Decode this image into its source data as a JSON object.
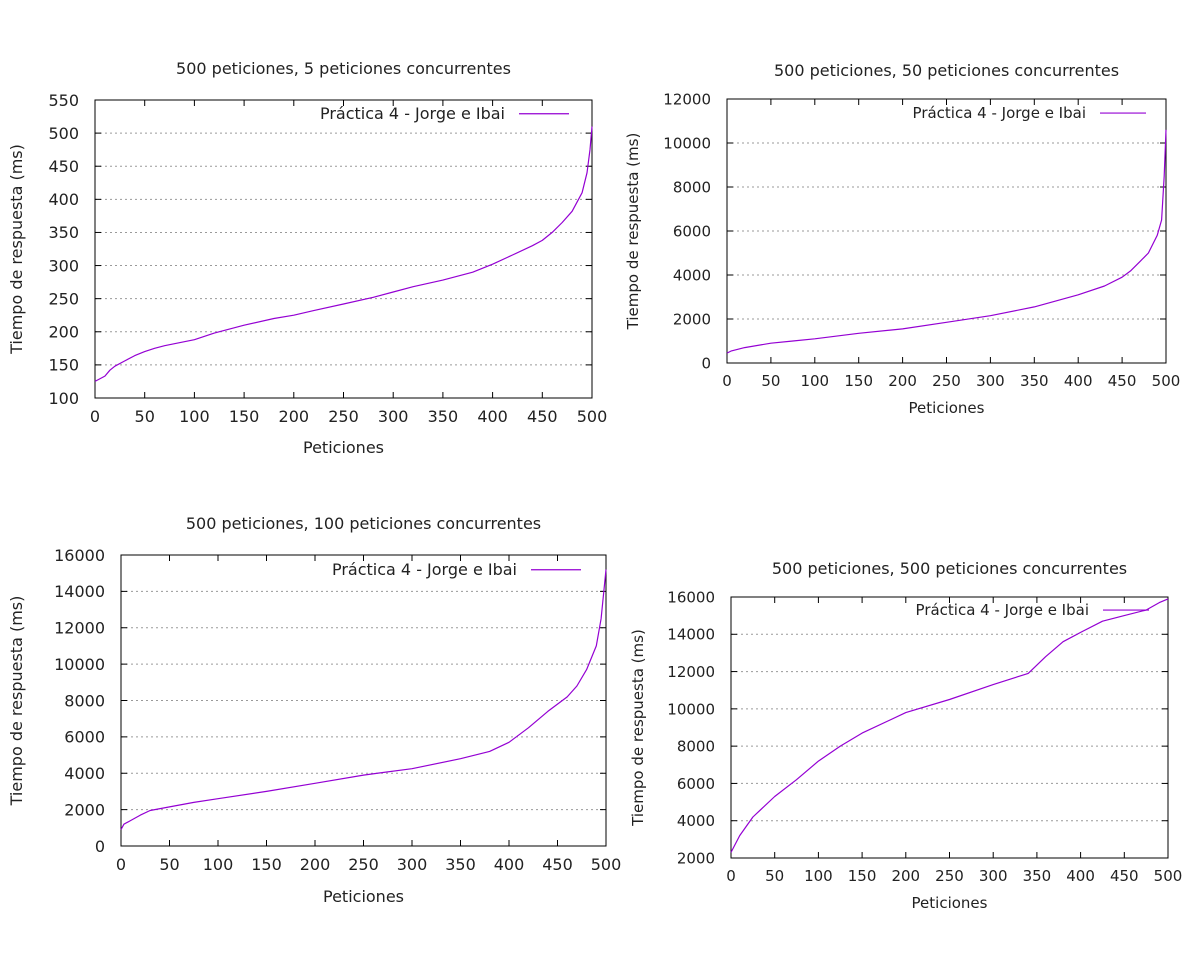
{
  "chart_data": [
    {
      "type": "line",
      "title": "500 peticiones, 5 peticiones concurrentes",
      "xlabel": "Peticiones",
      "ylabel": "Tiempo de respuesta (ms)",
      "xlim": [
        0,
        500
      ],
      "ylim": [
        100,
        550
      ],
      "xticks": [
        0,
        50,
        100,
        150,
        200,
        250,
        300,
        350,
        400,
        450,
        500
      ],
      "yticks": [
        100,
        150,
        200,
        250,
        300,
        350,
        400,
        450,
        500,
        550
      ],
      "grid": "horizontal dotted",
      "legend": "top-right",
      "color": "#9400d3",
      "series": [
        {
          "name": "Práctica 4 - Jorge e Ibai",
          "x": [
            0,
            10,
            15,
            20,
            30,
            40,
            50,
            60,
            70,
            80,
            100,
            120,
            150,
            180,
            200,
            220,
            250,
            280,
            300,
            320,
            350,
            380,
            400,
            420,
            440,
            450,
            460,
            470,
            480,
            490,
            495,
            498,
            500
          ],
          "y": [
            125,
            133,
            142,
            148,
            156,
            164,
            170,
            175,
            179,
            182,
            188,
            198,
            210,
            220,
            225,
            232,
            242,
            252,
            260,
            268,
            278,
            290,
            302,
            316,
            330,
            338,
            350,
            365,
            382,
            410,
            440,
            475,
            510
          ]
        }
      ]
    },
    {
      "type": "line",
      "title": "500 peticiones, 50 peticiones concurrentes",
      "xlabel": "Peticiones",
      "ylabel": "Tiempo de respuesta (ms)",
      "xlim": [
        0,
        500
      ],
      "ylim": [
        0,
        12000
      ],
      "xticks": [
        0,
        50,
        100,
        150,
        200,
        250,
        300,
        350,
        400,
        450,
        500
      ],
      "yticks": [
        0,
        2000,
        4000,
        6000,
        8000,
        10000,
        12000
      ],
      "grid": "horizontal dotted",
      "legend": "top-right",
      "color": "#9400d3",
      "series": [
        {
          "name": "Práctica 4 - Jorge e Ibai",
          "x": [
            0,
            5,
            20,
            50,
            75,
            100,
            150,
            200,
            250,
            300,
            350,
            400,
            430,
            450,
            460,
            470,
            480,
            490,
            495,
            498,
            500
          ],
          "y": [
            450,
            550,
            700,
            900,
            1000,
            1100,
            1350,
            1550,
            1850,
            2150,
            2550,
            3100,
            3500,
            3900,
            4200,
            4600,
            5000,
            5800,
            6500,
            8500,
            10600
          ]
        }
      ]
    },
    {
      "type": "line",
      "title": "500 peticiones, 100 peticiones concurrentes",
      "xlabel": "Peticiones",
      "ylabel": "Tiempo de respuesta (ms)",
      "xlim": [
        0,
        500
      ],
      "ylim": [
        0,
        16000
      ],
      "xticks": [
        0,
        50,
        100,
        150,
        200,
        250,
        300,
        350,
        400,
        450,
        500
      ],
      "yticks": [
        0,
        2000,
        4000,
        6000,
        8000,
        10000,
        12000,
        14000,
        16000
      ],
      "grid": "horizontal dotted",
      "legend": "top-right",
      "color": "#9400d3",
      "series": [
        {
          "name": "Práctica 4 - Jorge e Ibai",
          "x": [
            0,
            3,
            10,
            20,
            30,
            50,
            75,
            100,
            150,
            200,
            250,
            300,
            350,
            380,
            400,
            420,
            440,
            460,
            470,
            480,
            490,
            495,
            500
          ],
          "y": [
            900,
            1200,
            1400,
            1700,
            1950,
            2150,
            2400,
            2600,
            3000,
            3450,
            3900,
            4250,
            4800,
            5200,
            5700,
            6500,
            7400,
            8200,
            8800,
            9700,
            11000,
            12500,
            15200
          ]
        }
      ]
    },
    {
      "type": "line",
      "title": "500 peticiones, 500 peticiones concurrentes",
      "xlabel": "Peticiones",
      "ylabel": "Tiempo de respuesta (ms)",
      "xlim": [
        0,
        500
      ],
      "ylim": [
        2000,
        16000
      ],
      "xticks": [
        0,
        50,
        100,
        150,
        200,
        250,
        300,
        350,
        400,
        450,
        500
      ],
      "yticks": [
        2000,
        4000,
        6000,
        8000,
        10000,
        12000,
        14000,
        16000
      ],
      "grid": "horizontal dotted",
      "legend": "top-right",
      "color": "#9400d3",
      "series": [
        {
          "name": "Práctica 4 - Jorge e Ibai",
          "x": [
            0,
            10,
            25,
            50,
            75,
            100,
            125,
            150,
            200,
            250,
            300,
            340,
            360,
            380,
            400,
            425,
            450,
            475,
            490,
            500
          ],
          "y": [
            2300,
            3200,
            4200,
            5300,
            6200,
            7200,
            8000,
            8700,
            9800,
            10500,
            11300,
            11900,
            12800,
            13600,
            14100,
            14700,
            15000,
            15300,
            15700,
            15900
          ]
        }
      ]
    }
  ]
}
